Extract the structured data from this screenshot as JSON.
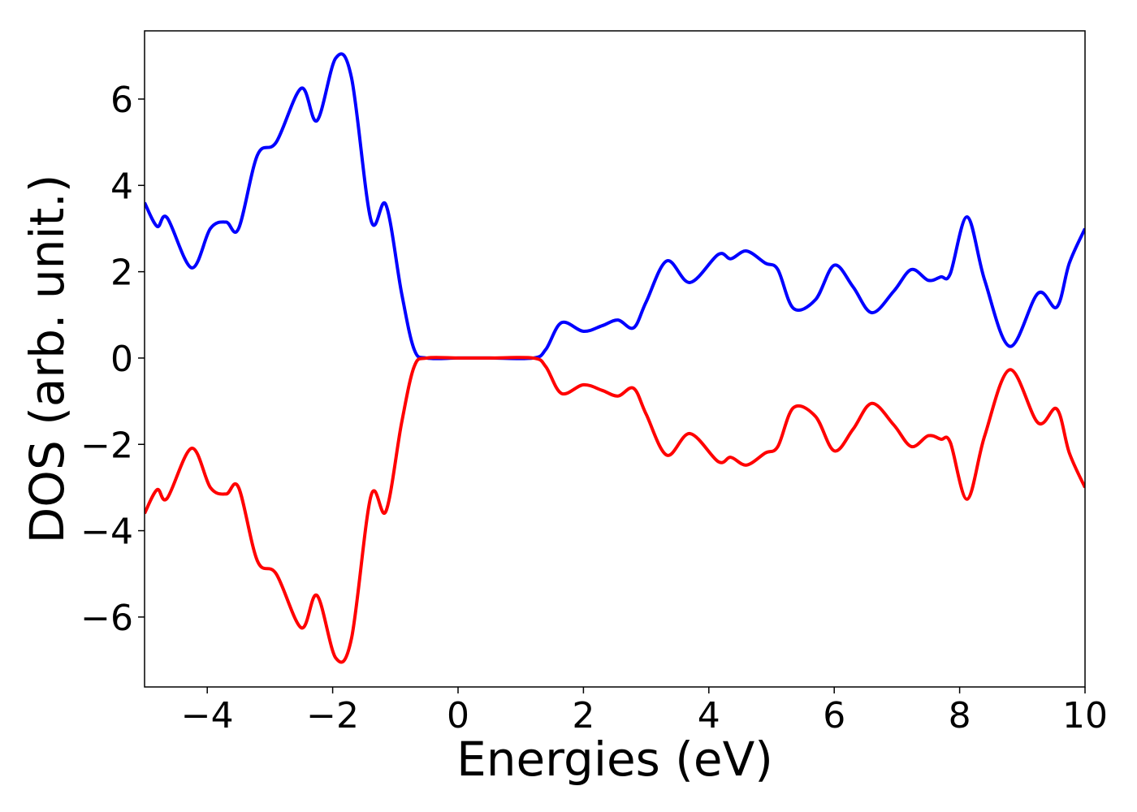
{
  "chart_data": {
    "type": "line",
    "xlabel": "Energies (eV)",
    "ylabel": "DOS (arb. unit.)",
    "x": [
      -5,
      -4.8,
      -4.64,
      -4.25,
      -3.95,
      -3.7,
      -3.5,
      -3.2,
      -2.9,
      -2.5,
      -2.25,
      -1.95,
      -1.7,
      -1.39,
      -1.15,
      -0.9,
      -0.7,
      -0.5,
      0,
      0.5,
      1.2,
      1.4,
      1.65,
      2.0,
      2.3,
      2.55,
      2.8,
      3.0,
      3.33,
      3.7,
      4.15,
      4.35,
      4.6,
      4.9,
      5.1,
      5.35,
      5.7,
      6.0,
      6.3,
      6.6,
      6.95,
      7.23,
      7.5,
      7.7,
      7.85,
      8.12,
      8.4,
      8.8,
      9.25,
      9.55,
      9.75,
      10
    ],
    "series": [
      {
        "color": "#0000ff",
        "values": [
          3.6,
          3.05,
          3.25,
          2.09,
          3.0,
          3.15,
          3.0,
          4.7,
          5.0,
          6.25,
          5.5,
          6.95,
          6.5,
          3.2,
          3.55,
          1.5,
          0.2,
          0,
          0,
          0,
          0,
          0.2,
          0.82,
          0.62,
          0.75,
          0.88,
          0.7,
          1.3,
          2.25,
          1.75,
          2.4,
          2.3,
          2.48,
          2.2,
          2.05,
          1.15,
          1.35,
          2.15,
          1.65,
          1.05,
          1.55,
          2.05,
          1.8,
          1.88,
          1.95,
          3.27,
          1.8,
          0.27,
          1.5,
          1.18,
          2.2,
          3.0
        ]
      },
      {
        "color": "#ff0000",
        "values": [
          -3.6,
          -3.05,
          -3.25,
          -2.09,
          -3.0,
          -3.15,
          -3.0,
          -4.7,
          -5.0,
          -6.25,
          -5.5,
          -6.95,
          -6.5,
          -3.2,
          -3.55,
          -1.5,
          -0.2,
          0,
          0,
          0,
          0,
          -0.2,
          -0.82,
          -0.62,
          -0.75,
          -0.88,
          -0.7,
          -1.3,
          -2.25,
          -1.75,
          -2.4,
          -2.3,
          -2.48,
          -2.2,
          -2.05,
          -1.15,
          -1.35,
          -2.15,
          -1.65,
          -1.05,
          -1.55,
          -2.05,
          -1.8,
          -1.88,
          -1.95,
          -3.27,
          -1.8,
          -0.27,
          -1.5,
          -1.18,
          -2.2,
          -3.0
        ]
      }
    ],
    "xlim": [
      -5,
      10
    ],
    "xticks": [
      {
        "value": -4,
        "label": "−4"
      },
      {
        "value": -2,
        "label": "−2"
      },
      0,
      2,
      4,
      6,
      8,
      10
    ],
    "ylim": [
      -7.62,
      7.58
    ],
    "yticks": [
      {
        "value": -6,
        "label": "−6"
      },
      {
        "value": -4,
        "label": "−4"
      },
      {
        "value": -2,
        "label": "−2"
      },
      0,
      2,
      4,
      6
    ],
    "grid": false
  }
}
